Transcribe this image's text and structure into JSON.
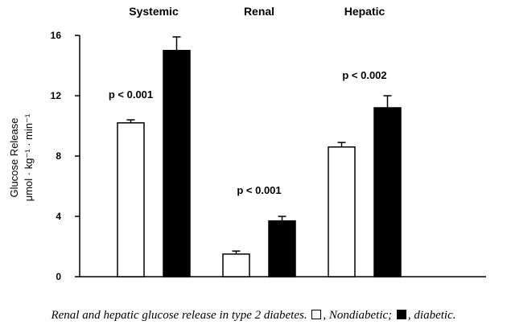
{
  "chart_data": {
    "type": "bar",
    "categories": [
      "Systemic",
      "Renal",
      "Hepatic"
    ],
    "series": [
      {
        "name": "Nondiabetic",
        "values": [
          10.2,
          1.5,
          8.6
        ],
        "errors": [
          0.2,
          0.2,
          0.3
        ],
        "color": "#ffffff"
      },
      {
        "name": "diabetic",
        "values": [
          15.0,
          3.7,
          11.2
        ],
        "errors": [
          0.9,
          0.3,
          0.8
        ],
        "color": "#000000"
      }
    ],
    "annotations": [
      "p < 0.001",
      "p < 0.001",
      "p < 0.002"
    ],
    "ylabel_line1": "Glucose Release",
    "ylabel_line2": "μmol · kg⁻¹ · min⁻¹",
    "ylim": [
      0,
      16
    ],
    "yticks": [
      "0",
      "4",
      "8",
      "12",
      "16"
    ],
    "grid": false
  },
  "caption": {
    "before": "Renal and hepatic glucose release in type 2 diabetes.",
    "nondiabetic": ", Nondiabetic;",
    "diabetic": ", diabetic."
  }
}
